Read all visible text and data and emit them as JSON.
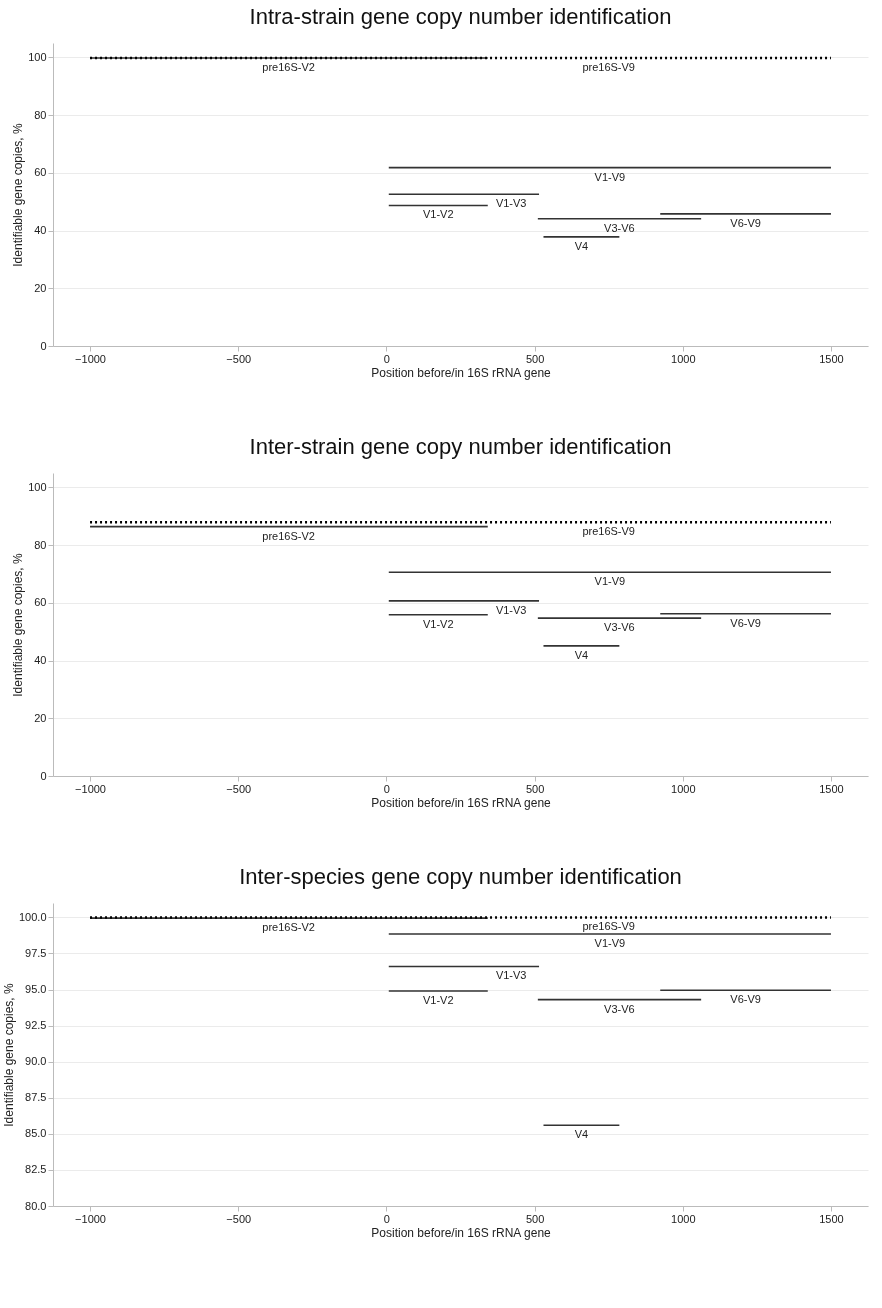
{
  "chart_data": [
    {
      "type": "line",
      "title": "Intra-strain gene copy number identification",
      "xlabel": "Position before/in 16S rRNA gene",
      "ylabel": "Identifiable gene copies, %",
      "xlim": [
        -1125,
        1625
      ],
      "ylim": [
        0,
        105
      ],
      "xticks": [
        -1000,
        -500,
        0,
        500,
        1000,
        1500
      ],
      "yticks": [
        0,
        20,
        40,
        60,
        80,
        100
      ],
      "grid": "y",
      "series": [
        {
          "color": "#333333",
          "line_style": "solid",
          "x": [
            -1000,
            342
          ],
          "values": [
            99.8,
            99.8
          ]
        },
        {
          "color": "#000000",
          "line_style": "dotted",
          "x": [
            -1000,
            1500
          ],
          "values": [
            99.8,
            99.8
          ]
        },
        {
          "color": "#333333",
          "line_style": "solid",
          "x": [
            8,
            1500
          ],
          "values": [
            61.8,
            61.8
          ]
        },
        {
          "color": "#333333",
          "line_style": "solid",
          "x": [
            8,
            515
          ],
          "values": [
            52.6,
            52.6
          ]
        },
        {
          "color": "#333333",
          "line_style": "solid",
          "x": [
            8,
            342
          ],
          "values": [
            48.7,
            48.7
          ]
        },
        {
          "color": "#333333",
          "line_style": "solid",
          "x": [
            511,
            1062
          ],
          "values": [
            44.1,
            44.1
          ]
        },
        {
          "color": "#333333",
          "line_style": "solid",
          "x": [
            924,
            1500
          ],
          "values": [
            45.8,
            45.8
          ]
        },
        {
          "color": "#333333",
          "line_style": "solid",
          "x": [
            530,
            786
          ],
          "values": [
            37.8,
            37.8
          ]
        }
      ],
      "annotations": [
        {
          "text": "pre16S-V2",
          "x": -330,
          "y": 99.8
        },
        {
          "text": "pre16S-V9",
          "x": 750,
          "y": 99.8
        },
        {
          "text": "V1-V9",
          "x": 754,
          "y": 61.8
        },
        {
          "text": "V1-V3",
          "x": 421,
          "y": 52.6
        },
        {
          "text": "V1-V2",
          "x": 175,
          "y": 48.7
        },
        {
          "text": "V3-V6",
          "x": 786,
          "y": 44.1
        },
        {
          "text": "V6-V9",
          "x": 1212,
          "y": 45.8
        },
        {
          "text": "V4",
          "x": 658,
          "y": 37.8
        }
      ]
    },
    {
      "type": "line",
      "title": "Inter-strain gene copy number identification",
      "xlabel": "Position before/in 16S rRNA gene",
      "ylabel": "Identifiable gene copies, %",
      "xlim": [
        -1125,
        1625
      ],
      "ylim": [
        0,
        105
      ],
      "xticks": [
        -1000,
        -500,
        0,
        500,
        1000,
        1500
      ],
      "yticks": [
        0,
        20,
        40,
        60,
        80,
        100
      ],
      "grid": "y",
      "series": [
        {
          "color": "#333333",
          "line_style": "solid",
          "x": [
            -1000,
            342
          ],
          "values": [
            86.4,
            86.4
          ]
        },
        {
          "color": "#000000",
          "line_style": "dotted",
          "x": [
            -1000,
            1500
          ],
          "values": [
            87.9,
            87.9
          ]
        },
        {
          "color": "#333333",
          "line_style": "solid",
          "x": [
            8,
            1500
          ],
          "values": [
            70.6,
            70.6
          ]
        },
        {
          "color": "#333333",
          "line_style": "solid",
          "x": [
            8,
            515
          ],
          "values": [
            60.7,
            60.7
          ]
        },
        {
          "color": "#333333",
          "line_style": "solid",
          "x": [
            8,
            342
          ],
          "values": [
            55.9,
            55.9
          ]
        },
        {
          "color": "#333333",
          "line_style": "solid",
          "x": [
            511,
            1062
          ],
          "values": [
            54.7,
            54.7
          ]
        },
        {
          "color": "#333333",
          "line_style": "solid",
          "x": [
            924,
            1500
          ],
          "values": [
            56.2,
            56.2
          ]
        },
        {
          "color": "#333333",
          "line_style": "solid",
          "x": [
            530,
            786
          ],
          "values": [
            45.1,
            45.1
          ]
        }
      ],
      "annotations": [
        {
          "text": "pre16S-V2",
          "x": -330,
          "y": 86.4
        },
        {
          "text": "pre16S-V9",
          "x": 750,
          "y": 87.9
        },
        {
          "text": "V1-V9",
          "x": 754,
          "y": 70.6
        },
        {
          "text": "V1-V3",
          "x": 421,
          "y": 60.7
        },
        {
          "text": "V1-V2",
          "x": 175,
          "y": 55.9
        },
        {
          "text": "V3-V6",
          "x": 786,
          "y": 54.7
        },
        {
          "text": "V6-V9",
          "x": 1212,
          "y": 56.2
        },
        {
          "text": "V4",
          "x": 658,
          "y": 45.1
        }
      ]
    },
    {
      "type": "line",
      "title": "Inter-species gene copy number identification",
      "xlabel": "Position before/in 16S rRNA gene",
      "ylabel": "Identifiable gene copies, %",
      "xlim": [
        -1125,
        1625
      ],
      "ylim": [
        80,
        101
      ],
      "xticks": [
        -1000,
        -500,
        0,
        500,
        1000,
        1500
      ],
      "yticks": [
        {
          "value": 80,
          "label": "80.0"
        },
        82.5,
        {
          "value": 85,
          "label": "85.0"
        },
        87.5,
        {
          "value": 90,
          "label": "90.0"
        },
        92.5,
        {
          "value": 95,
          "label": "95.0"
        },
        97.5,
        {
          "value": 100,
          "label": "100.0"
        }
      ],
      "grid": "y",
      "series": [
        {
          "color": "#333333",
          "line_style": "solid",
          "x": [
            -1000,
            342
          ],
          "values": [
            99.95,
            99.95
          ]
        },
        {
          "color": "#000000",
          "line_style": "dotted",
          "x": [
            -1000,
            1500
          ],
          "values": [
            100.0,
            100.0
          ]
        },
        {
          "color": "#333333",
          "line_style": "solid",
          "x": [
            8,
            1500
          ],
          "values": [
            98.85,
            98.85
          ]
        },
        {
          "color": "#333333",
          "line_style": "solid",
          "x": [
            8,
            515
          ],
          "values": [
            96.6,
            96.6
          ]
        },
        {
          "color": "#333333",
          "line_style": "solid",
          "x": [
            8,
            342
          ],
          "values": [
            94.9,
            94.9
          ]
        },
        {
          "color": "#333333",
          "line_style": "solid",
          "x": [
            511,
            1062
          ],
          "values": [
            94.3,
            94.3
          ]
        },
        {
          "color": "#333333",
          "line_style": "solid",
          "x": [
            924,
            1500
          ],
          "values": [
            94.95,
            94.95
          ]
        },
        {
          "color": "#333333",
          "line_style": "solid",
          "x": [
            530,
            786
          ],
          "values": [
            85.6,
            85.6
          ]
        }
      ],
      "annotations": [
        {
          "text": "pre16S-V2",
          "x": -330,
          "y": 99.95
        },
        {
          "text": "pre16S-V9",
          "x": 750,
          "y": 100.0
        },
        {
          "text": "V1-V9",
          "x": 754,
          "y": 98.85
        },
        {
          "text": "V1-V3",
          "x": 421,
          "y": 96.6
        },
        {
          "text": "V1-V2",
          "x": 175,
          "y": 94.9
        },
        {
          "text": "V3-V6",
          "x": 786,
          "y": 94.3
        },
        {
          "text": "V6-V9",
          "x": 1212,
          "y": 94.95
        },
        {
          "text": "V4",
          "x": 658,
          "y": 85.6
        }
      ]
    }
  ]
}
